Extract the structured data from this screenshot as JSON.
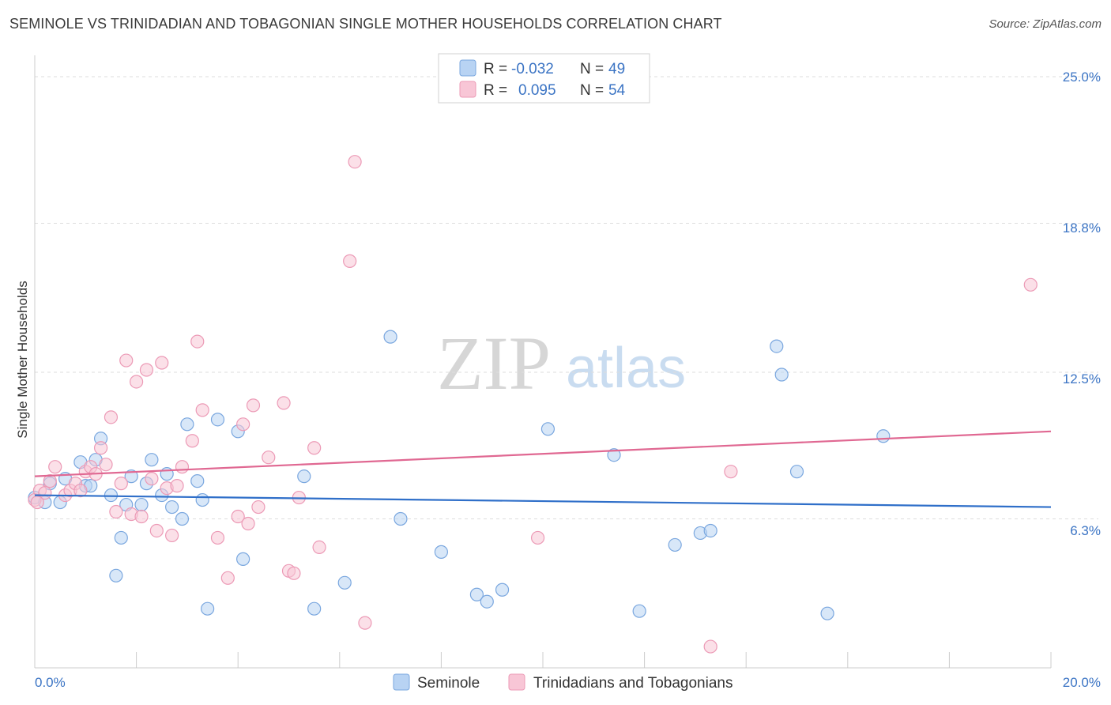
{
  "header": {
    "title": "SEMINOLE VS TRINIDADIAN AND TOBAGONIAN SINGLE MOTHER HOUSEHOLDS CORRELATION CHART",
    "source": "Source: ZipAtlas.com"
  },
  "watermark": {
    "zip": "ZIP",
    "atlas": "atlas"
  },
  "colors": {
    "seminole_fill": "#b8d3f3",
    "seminole_stroke": "#7aa7df",
    "seminole_line": "#2f6fc9",
    "trini_fill": "#f8c6d6",
    "trini_stroke": "#ec9ab6",
    "trini_line": "#e06892",
    "axis_label": "#3b74c4",
    "grid": "#dddddd"
  },
  "legend_box": {
    "rows": [
      {
        "r_label": "R =",
        "r_value": "-0.032",
        "n_label": "N =",
        "n_value": "49"
      },
      {
        "r_label": "R =",
        "r_value": "0.095",
        "n_label": "N =",
        "n_value": "54"
      }
    ]
  },
  "chart_data": {
    "type": "scatter",
    "title": "SEMINOLE VS TRINIDADIAN AND TOBAGONIAN SINGLE MOTHER HOUSEHOLDS CORRELATION CHART",
    "xlabel": "",
    "ylabel": "Single Mother Households",
    "xlim": [
      0,
      20
    ],
    "ylim": [
      0,
      25.6
    ],
    "x_tick_labels": [
      "0.0%",
      "20.0%"
    ],
    "y_ticks": [
      6.3,
      12.5,
      18.8,
      25.0
    ],
    "y_tick_labels": [
      "6.3%",
      "12.5%",
      "18.8%",
      "25.0%"
    ],
    "grid": "horizontal dashed",
    "legend_placement": "bottom-center",
    "series": [
      {
        "name": "Seminole",
        "r": -0.032,
        "n": 49,
        "trend": {
          "x": [
            0,
            20
          ],
          "y": [
            7.3,
            6.8
          ]
        },
        "points": [
          {
            "x": 0.0,
            "y": 7.2
          },
          {
            "x": 0.2,
            "y": 7.0
          },
          {
            "x": 0.3,
            "y": 7.8
          },
          {
            "x": 0.5,
            "y": 7.0
          },
          {
            "x": 0.6,
            "y": 8.0
          },
          {
            "x": 0.9,
            "y": 8.7
          },
          {
            "x": 1.0,
            "y": 7.7
          },
          {
            "x": 1.1,
            "y": 7.7
          },
          {
            "x": 1.2,
            "y": 8.8
          },
          {
            "x": 1.3,
            "y": 9.7
          },
          {
            "x": 1.5,
            "y": 7.3
          },
          {
            "x": 1.6,
            "y": 3.9
          },
          {
            "x": 1.7,
            "y": 5.5
          },
          {
            "x": 1.8,
            "y": 6.9
          },
          {
            "x": 1.9,
            "y": 8.1
          },
          {
            "x": 2.1,
            "y": 6.9
          },
          {
            "x": 2.2,
            "y": 7.8
          },
          {
            "x": 2.3,
            "y": 8.8
          },
          {
            "x": 2.5,
            "y": 7.3
          },
          {
            "x": 2.6,
            "y": 8.2
          },
          {
            "x": 2.7,
            "y": 6.8
          },
          {
            "x": 2.9,
            "y": 6.3
          },
          {
            "x": 3.0,
            "y": 10.3
          },
          {
            "x": 3.2,
            "y": 7.9
          },
          {
            "x": 3.3,
            "y": 7.1
          },
          {
            "x": 3.4,
            "y": 2.5
          },
          {
            "x": 3.6,
            "y": 10.5
          },
          {
            "x": 4.0,
            "y": 10.0
          },
          {
            "x": 4.1,
            "y": 4.6
          },
          {
            "x": 5.3,
            "y": 8.1
          },
          {
            "x": 5.5,
            "y": 2.5
          },
          {
            "x": 6.1,
            "y": 3.6
          },
          {
            "x": 7.0,
            "y": 14.0
          },
          {
            "x": 7.2,
            "y": 6.3
          },
          {
            "x": 8.0,
            "y": 4.9
          },
          {
            "x": 8.7,
            "y": 3.1
          },
          {
            "x": 8.9,
            "y": 2.8
          },
          {
            "x": 9.2,
            "y": 3.3
          },
          {
            "x": 10.1,
            "y": 10.1
          },
          {
            "x": 11.4,
            "y": 9.0
          },
          {
            "x": 11.9,
            "y": 2.4
          },
          {
            "x": 12.6,
            "y": 5.2
          },
          {
            "x": 13.1,
            "y": 5.7
          },
          {
            "x": 13.3,
            "y": 5.8
          },
          {
            "x": 14.6,
            "y": 13.6
          },
          {
            "x": 14.7,
            "y": 12.4
          },
          {
            "x": 15.0,
            "y": 8.3
          },
          {
            "x": 15.6,
            "y": 2.3
          },
          {
            "x": 16.7,
            "y": 9.8
          }
        ]
      },
      {
        "name": "Trinidadians and Tobagonians",
        "r": 0.095,
        "n": 54,
        "trend": {
          "x": [
            0,
            20
          ],
          "y": [
            8.1,
            10.0
          ]
        },
        "points": [
          {
            "x": 0.0,
            "y": 7.1
          },
          {
            "x": 0.1,
            "y": 7.5
          },
          {
            "x": 0.2,
            "y": 7.4
          },
          {
            "x": 0.3,
            "y": 7.9
          },
          {
            "x": 0.4,
            "y": 8.5
          },
          {
            "x": 0.6,
            "y": 7.3
          },
          {
            "x": 0.7,
            "y": 7.5
          },
          {
            "x": 0.8,
            "y": 7.8
          },
          {
            "x": 0.9,
            "y": 7.5
          },
          {
            "x": 1.0,
            "y": 8.3
          },
          {
            "x": 1.1,
            "y": 8.5
          },
          {
            "x": 1.2,
            "y": 8.2
          },
          {
            "x": 1.3,
            "y": 9.3
          },
          {
            "x": 1.4,
            "y": 8.6
          },
          {
            "x": 1.5,
            "y": 10.6
          },
          {
            "x": 1.6,
            "y": 6.6
          },
          {
            "x": 1.7,
            "y": 7.8
          },
          {
            "x": 1.8,
            "y": 13.0
          },
          {
            "x": 1.9,
            "y": 6.5
          },
          {
            "x": 2.0,
            "y": 12.1
          },
          {
            "x": 2.1,
            "y": 6.4
          },
          {
            "x": 2.2,
            "y": 12.6
          },
          {
            "x": 2.3,
            "y": 8.0
          },
          {
            "x": 2.4,
            "y": 5.8
          },
          {
            "x": 2.5,
            "y": 12.9
          },
          {
            "x": 2.6,
            "y": 7.6
          },
          {
            "x": 2.7,
            "y": 5.6
          },
          {
            "x": 2.8,
            "y": 7.7
          },
          {
            "x": 2.9,
            "y": 8.5
          },
          {
            "x": 3.1,
            "y": 9.6
          },
          {
            "x": 3.2,
            "y": 13.8
          },
          {
            "x": 3.3,
            "y": 10.9
          },
          {
            "x": 3.6,
            "y": 5.5
          },
          {
            "x": 3.8,
            "y": 3.8
          },
          {
            "x": 4.0,
            "y": 6.4
          },
          {
            "x": 4.1,
            "y": 10.3
          },
          {
            "x": 4.2,
            "y": 6.1
          },
          {
            "x": 4.3,
            "y": 11.1
          },
          {
            "x": 4.4,
            "y": 6.8
          },
          {
            "x": 4.6,
            "y": 8.9
          },
          {
            "x": 4.9,
            "y": 11.2
          },
          {
            "x": 5.0,
            "y": 4.1
          },
          {
            "x": 5.1,
            "y": 4.0
          },
          {
            "x": 5.2,
            "y": 7.2
          },
          {
            "x": 5.5,
            "y": 9.3
          },
          {
            "x": 5.6,
            "y": 5.1
          },
          {
            "x": 6.2,
            "y": 17.2
          },
          {
            "x": 6.3,
            "y": 21.4
          },
          {
            "x": 6.5,
            "y": 1.9
          },
          {
            "x": 9.9,
            "y": 5.5
          },
          {
            "x": 13.3,
            "y": 0.9
          },
          {
            "x": 13.7,
            "y": 8.3
          },
          {
            "x": 19.6,
            "y": 16.2
          },
          {
            "x": 0.05,
            "y": 7.0
          }
        ]
      }
    ]
  }
}
